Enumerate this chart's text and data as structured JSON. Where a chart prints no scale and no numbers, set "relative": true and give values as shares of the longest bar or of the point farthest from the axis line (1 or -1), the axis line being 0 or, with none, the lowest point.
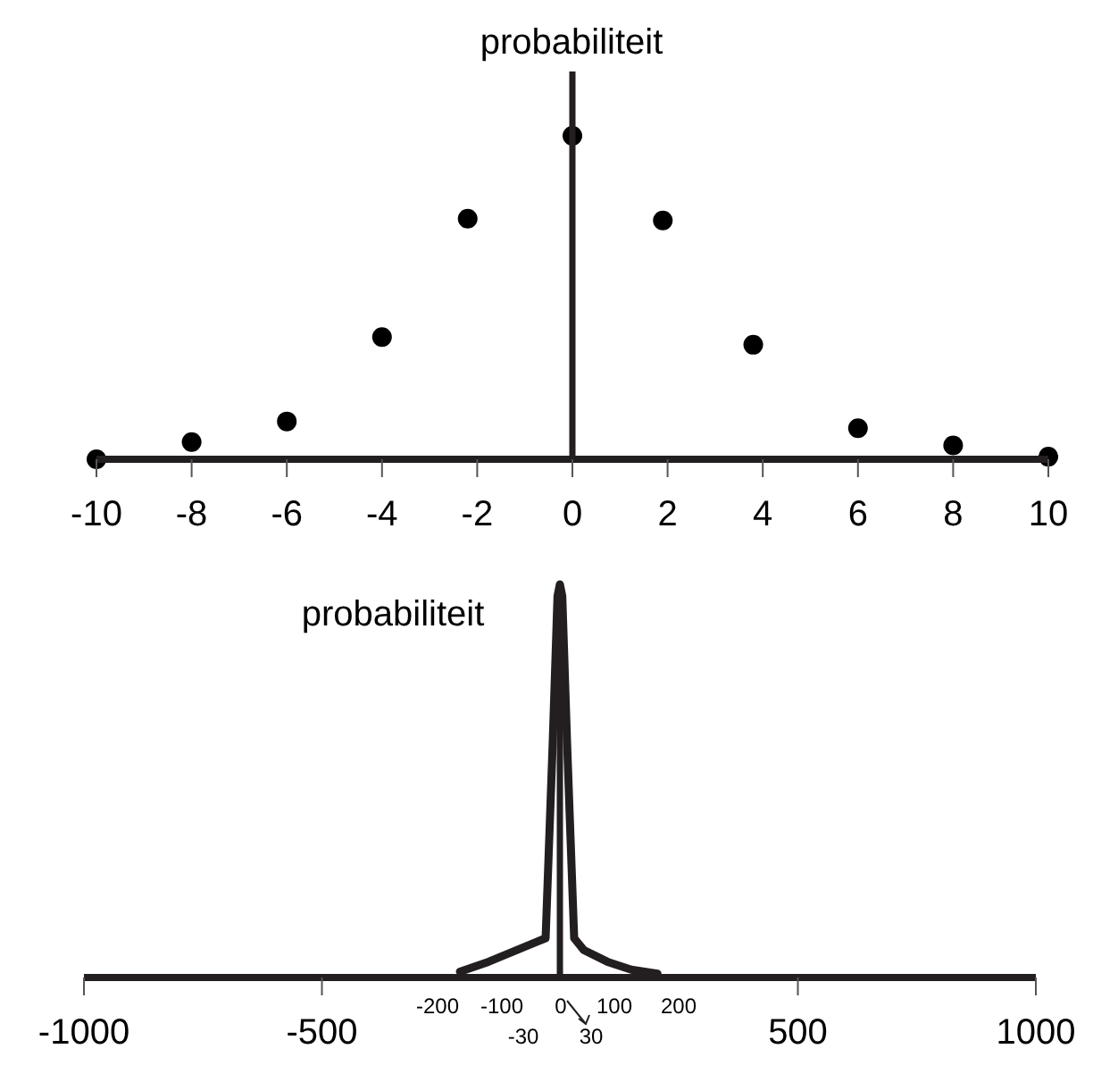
{
  "chart_data": [
    {
      "type": "scatter",
      "ylabel": "probabiliteit",
      "relative": true,
      "marker": "circle",
      "xlim": [
        -10,
        10
      ],
      "xticks": [
        -10,
        -8,
        -6,
        -4,
        -2,
        0,
        2,
        4,
        6,
        8,
        10
      ],
      "series": [
        {
          "color": "#000000",
          "x": [
            -10,
            -8,
            -6,
            -4,
            -2.2,
            0,
            1.9,
            3.8,
            6,
            8,
            10
          ],
          "values": [
            0,
            0.053,
            0.117,
            0.378,
            0.744,
            1,
            0.738,
            0.354,
            0.096,
            0.043,
            0.008
          ]
        }
      ]
    },
    {
      "type": "line",
      "ylabel": "probabiliteit",
      "relative": true,
      "xlim": [
        -1000,
        1000
      ],
      "xticks": [
        -1000,
        -500,
        500,
        1000
      ],
      "series": [
        {
          "color": "#231f20",
          "x": [
            -210,
            -150,
            -100,
            -50,
            -30,
            -15,
            -5,
            0,
            5,
            15,
            30,
            50,
            100,
            150,
            205
          ],
          "values": [
            0.015,
            0.04,
            0.065,
            0.09,
            0.1,
            0.6,
            0.97,
            1,
            0.97,
            0.6,
            0.1,
            0.07,
            0.04,
            0.02,
            0.01
          ]
        }
      ],
      "annotations": [
        "-200",
        "-100",
        "0",
        "100",
        "200",
        "-30",
        "30"
      ]
    }
  ]
}
